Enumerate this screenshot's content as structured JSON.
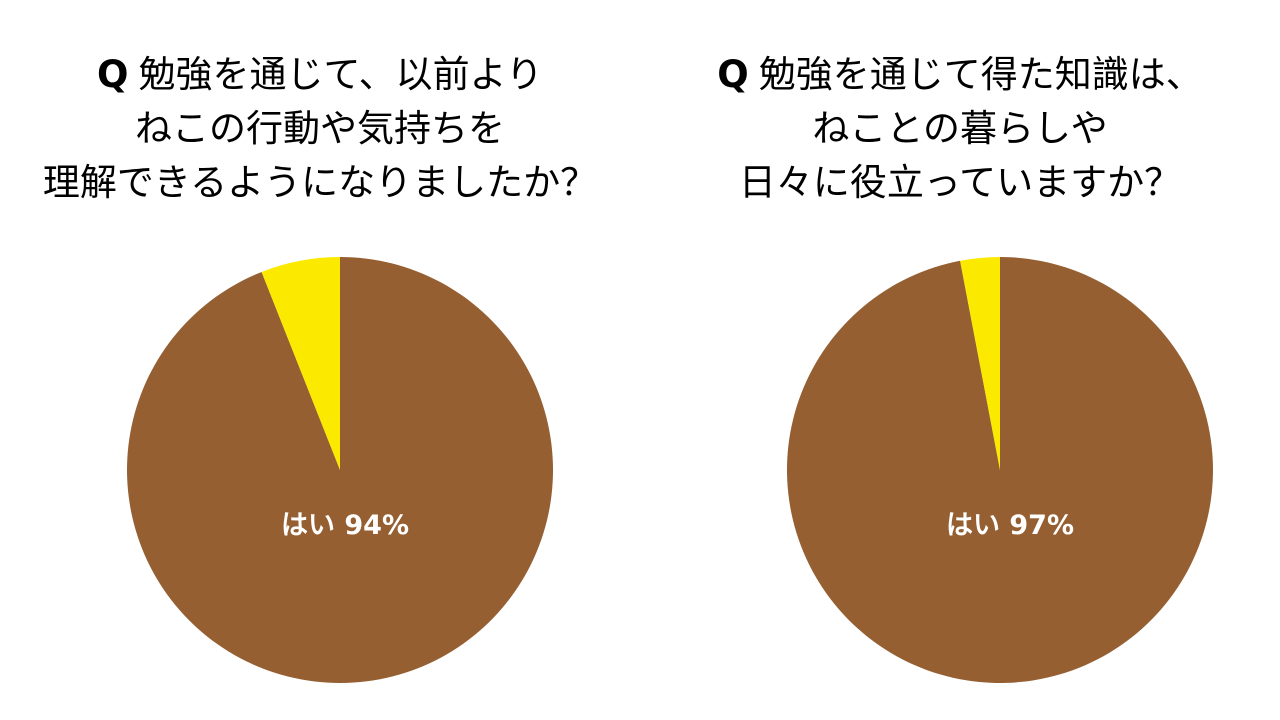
{
  "charts": [
    {
      "question_prefix": "Q",
      "question_lines": [
        "勉強を通じて、以前より",
        "ねこの行動や気持ちを",
        "理解できるようになりましたか？"
      ],
      "label": "はい 94%"
    },
    {
      "question_prefix": "Q",
      "question_lines": [
        "勉強を通じて得た知識は、",
        "ねことの暮らしや",
        "日々に役立っていますか？"
      ],
      "label": "はい 97%"
    }
  ],
  "chart_data": [
    {
      "type": "pie",
      "title": "Q 勉強を通じて、以前より ねこの行動や気持ちを 理解できるようになりましたか？",
      "slices": [
        {
          "label": "はい",
          "value": 94,
          "color": "#955F32"
        },
        {
          "label": "",
          "value": 6,
          "color": "#FBEA00"
        }
      ],
      "data_label": "はい 94%"
    },
    {
      "type": "pie",
      "title": "Q 勉強を通じて得た知識は、 ねことの暮らしや 日々に役立っていますか？",
      "slices": [
        {
          "label": "はい",
          "value": 97,
          "color": "#955F32"
        },
        {
          "label": "",
          "value": 3,
          "color": "#FBEA00"
        }
      ],
      "data_label": "はい 97%"
    }
  ]
}
